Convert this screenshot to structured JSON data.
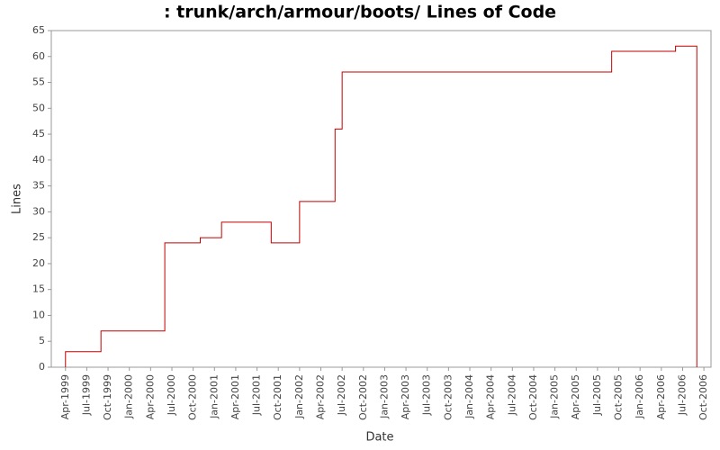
{
  "chart_data": {
    "type": "step-line",
    "title": ": trunk/arch/armour/boots/ Lines of Code",
    "x_label": "Date",
    "y_label": "Lines",
    "x": [
      "1999-04",
      "1999-04",
      "1999-09",
      "2000-06",
      "2000-11",
      "2001-02",
      "2001-09",
      "2002-01",
      "2002-06",
      "2002-07",
      "2005-09",
      "2006-06",
      "2006-09"
    ],
    "series": [
      {
        "name": "Lines",
        "color": "#c00000",
        "values": [
          0,
          3,
          7,
          24,
          25,
          28,
          24,
          32,
          46,
          57,
          61,
          62,
          0
        ]
      }
    ],
    "xlim": [
      "1999-02",
      "2006-11"
    ],
    "xticks": [
      {
        "value": "1999-04",
        "label": "Apr-1999"
      },
      {
        "value": "1999-07",
        "label": "Jul-1999"
      },
      {
        "value": "1999-10",
        "label": "Oct-1999"
      },
      {
        "value": "2000-01",
        "label": "Jan-2000"
      },
      {
        "value": "2000-04",
        "label": "Apr-2000"
      },
      {
        "value": "2000-07",
        "label": "Jul-2000"
      },
      {
        "value": "2000-10",
        "label": "Oct-2000"
      },
      {
        "value": "2001-01",
        "label": "Jan-2001"
      },
      {
        "value": "2001-04",
        "label": "Apr-2001"
      },
      {
        "value": "2001-07",
        "label": "Jul-2001"
      },
      {
        "value": "2001-10",
        "label": "Oct-2001"
      },
      {
        "value": "2002-01",
        "label": "Jan-2002"
      },
      {
        "value": "2002-04",
        "label": "Apr-2002"
      },
      {
        "value": "2002-07",
        "label": "Jul-2002"
      },
      {
        "value": "2002-10",
        "label": "Oct-2002"
      },
      {
        "value": "2003-01",
        "label": "Jan-2003"
      },
      {
        "value": "2003-04",
        "label": "Apr-2003"
      },
      {
        "value": "2003-07",
        "label": "Jul-2003"
      },
      {
        "value": "2003-10",
        "label": "Oct-2003"
      },
      {
        "value": "2004-01",
        "label": "Jan-2004"
      },
      {
        "value": "2004-04",
        "label": "Apr-2004"
      },
      {
        "value": "2004-07",
        "label": "Jul-2004"
      },
      {
        "value": "2004-10",
        "label": "Oct-2004"
      },
      {
        "value": "2005-01",
        "label": "Jan-2005"
      },
      {
        "value": "2005-04",
        "label": "Apr-2005"
      },
      {
        "value": "2005-07",
        "label": "Jul-2005"
      },
      {
        "value": "2005-10",
        "label": "Oct-2005"
      },
      {
        "value": "2006-01",
        "label": "Jan-2006"
      },
      {
        "value": "2006-04",
        "label": "Apr-2006"
      },
      {
        "value": "2006-07",
        "label": "Jul-2006"
      },
      {
        "value": "2006-10",
        "label": "Oct-2006"
      }
    ],
    "ylim": [
      0,
      65
    ],
    "yticks": [
      0,
      5,
      10,
      15,
      20,
      25,
      30,
      35,
      40,
      45,
      50,
      55,
      60,
      65
    ]
  }
}
